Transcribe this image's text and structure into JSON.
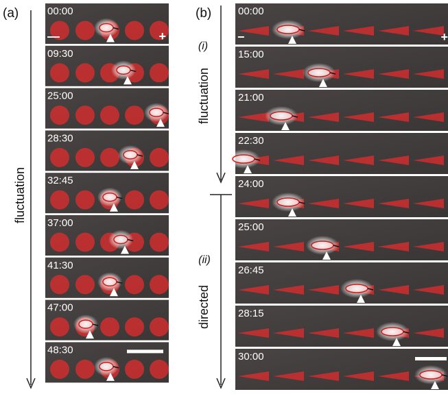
{
  "panel_a": {
    "label": "(a)",
    "axis_label": "fluctuation",
    "minus": "—",
    "plus": "+",
    "frames": [
      {
        "time": "00:00"
      },
      {
        "time": "09:30"
      },
      {
        "time": "25:00"
      },
      {
        "time": "28:30"
      },
      {
        "time": "32:45"
      },
      {
        "time": "37:00"
      },
      {
        "time": "41:30"
      },
      {
        "time": "47:00"
      },
      {
        "time": "48:30"
      }
    ]
  },
  "panel_b": {
    "label": "(b)",
    "minus": "−",
    "plus": "+",
    "phases": [
      {
        "label": "(i)",
        "axis_label": "fluctuation"
      },
      {
        "label": "(ii)",
        "axis_label": "directed"
      }
    ],
    "frames": [
      {
        "time": "00:00"
      },
      {
        "time": "15:00"
      },
      {
        "time": "21:00"
      },
      {
        "time": "22:30"
      },
      {
        "time": "24:00"
      },
      {
        "time": "25:00"
      },
      {
        "time": "26:45"
      },
      {
        "time": "28:15"
      },
      {
        "time": "30:00"
      }
    ]
  }
}
